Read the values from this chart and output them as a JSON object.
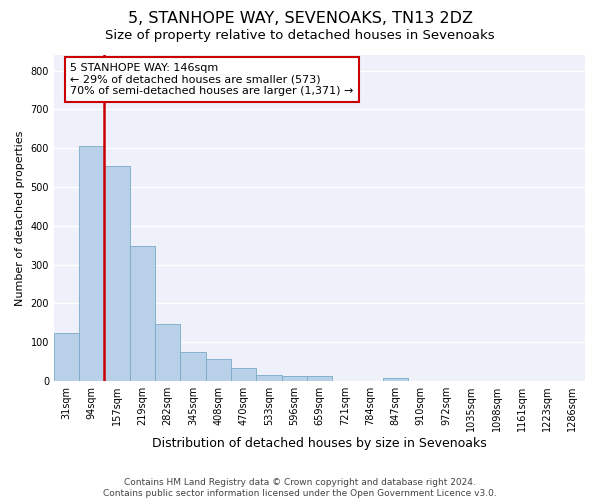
{
  "title": "5, STANHOPE WAY, SEVENOAKS, TN13 2DZ",
  "subtitle": "Size of property relative to detached houses in Sevenoaks",
  "xlabel": "Distribution of detached houses by size in Sevenoaks",
  "ylabel": "Number of detached properties",
  "categories": [
    "31sqm",
    "94sqm",
    "157sqm",
    "219sqm",
    "282sqm",
    "345sqm",
    "408sqm",
    "470sqm",
    "533sqm",
    "596sqm",
    "659sqm",
    "721sqm",
    "784sqm",
    "847sqm",
    "910sqm",
    "972sqm",
    "1035sqm",
    "1098sqm",
    "1161sqm",
    "1223sqm",
    "1286sqm"
  ],
  "values": [
    125,
    605,
    555,
    348,
    148,
    76,
    56,
    34,
    15,
    13,
    12,
    0,
    0,
    8,
    0,
    0,
    0,
    0,
    0,
    0,
    0
  ],
  "bar_color": "#b8d0e8",
  "bar_edge_color": "#7aaac8",
  "vline_color": "#cc0000",
  "annotation_text": "5 STANHOPE WAY: 146sqm\n← 29% of detached houses are smaller (573)\n70% of semi-detached houses are larger (1,371) →",
  "annotation_box_color": "#cc0000",
  "ylim": [
    0,
    840
  ],
  "yticks": [
    0,
    100,
    200,
    300,
    400,
    500,
    600,
    700,
    800
  ],
  "background_color": "#eef1fa",
  "grid_color": "#ffffff",
  "footer": "Contains HM Land Registry data © Crown copyright and database right 2024.\nContains public sector information licensed under the Open Government Licence v3.0.",
  "title_fontsize": 11.5,
  "subtitle_fontsize": 9.5,
  "xlabel_fontsize": 9,
  "ylabel_fontsize": 8,
  "tick_fontsize": 7,
  "annotation_fontsize": 8,
  "footer_fontsize": 6.5
}
